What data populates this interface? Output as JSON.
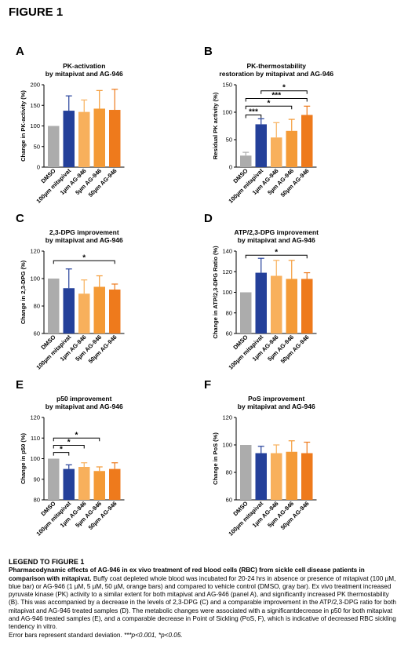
{
  "figure_title": "FIGURE 1",
  "colors": {
    "DMSO": "#acacac",
    "mitapivat": "#24409a",
    "ag1": "#f8b05c",
    "ag5": "#f49a36",
    "ag50": "#ee7a1c"
  },
  "chart_data": [
    {
      "panel": "A",
      "type": "bar",
      "title": [
        "PK-activation",
        "by mitapivat and AG-946"
      ],
      "ylabel": "Change in PK-activity (%)",
      "categories": [
        "DMSO",
        "100µm mitapivat",
        "1µm AG-946",
        "5µm AG-946",
        "50µm AG-946"
      ],
      "values": [
        100,
        137,
        134,
        142,
        139
      ],
      "errors": [
        0,
        36,
        29,
        44,
        50
      ],
      "ylim": [
        0,
        200
      ],
      "yticks": [
        0,
        50,
        100,
        150,
        200
      ],
      "significance": []
    },
    {
      "panel": "B",
      "type": "bar",
      "title": [
        "PK-thermostability",
        "restoration by mitapivat and AG-946"
      ],
      "ylabel": "Residual PK activity (%)",
      "categories": [
        "DMSO",
        "100µm mitapivat",
        "1µm AG-946",
        "5µm AG-946",
        "50µm AG-946"
      ],
      "values": [
        21,
        78,
        54,
        66,
        95
      ],
      "errors": [
        6,
        10,
        27,
        21,
        16
      ],
      "ylim": [
        0,
        150
      ],
      "yticks": [
        0,
        50,
        100,
        150
      ],
      "significance": [
        {
          "from": 0,
          "to": 1,
          "label": "***",
          "y": 95
        },
        {
          "from": 0,
          "to": 3,
          "label": "*",
          "y": 111
        },
        {
          "from": 0,
          "to": 4,
          "label": "***",
          "y": 125
        },
        {
          "from": 1,
          "to": 4,
          "label": "*",
          "y": 139
        }
      ]
    },
    {
      "panel": "C",
      "type": "bar",
      "title": [
        "2,3-DPG improvement",
        "by mitapivat and AG-946"
      ],
      "ylabel": "Change in 2,3-DPG (%)",
      "categories": [
        "DMSO",
        "100µm mitapivat",
        "1µm AG-946",
        "5µm AG-946",
        "50µm AG-946"
      ],
      "values": [
        100,
        93,
        89,
        94,
        92
      ],
      "errors": [
        0,
        14,
        10,
        8,
        4
      ],
      "ylim": [
        60,
        120
      ],
      "yticks": [
        60,
        80,
        100,
        120
      ],
      "significance": [
        {
          "from": 0,
          "to": 4,
          "label": "*",
          "y": 113
        }
      ]
    },
    {
      "panel": "D",
      "type": "bar",
      "title": [
        "ATP/2,3-DPG improvement",
        "by mitapivat and AG-946"
      ],
      "ylabel": "Change in ATP/2,3-DPG Ratio (%)",
      "categories": [
        "DMSO",
        "100µm mitapivat",
        "1µm AG-946",
        "5µm AG-946",
        "50µm AG-946"
      ],
      "values": [
        100,
        119,
        116,
        113,
        113
      ],
      "errors": [
        0,
        14,
        15,
        18,
        6
      ],
      "ylim": [
        60,
        140
      ],
      "yticks": [
        60,
        80,
        100,
        120,
        140
      ],
      "significance": [
        {
          "from": 0,
          "to": 4,
          "label": "*",
          "y": 136
        }
      ]
    },
    {
      "panel": "E",
      "type": "bar",
      "title": [
        "p50 improvement",
        "by mitapivat and AG-946"
      ],
      "ylabel": "Change in p50 (%)",
      "categories": [
        "DMSO",
        "100µm mitapivat",
        "1µm AG-946",
        "5µm AG-946",
        "50µm AG-946"
      ],
      "values": [
        100,
        95,
        96,
        94,
        95
      ],
      "errors": [
        0,
        2,
        2,
        2,
        3
      ],
      "ylim": [
        80,
        120
      ],
      "yticks": [
        80,
        90,
        100,
        110,
        120
      ],
      "significance": [
        {
          "from": 0,
          "to": 1,
          "label": "*",
          "y": 103
        },
        {
          "from": 0,
          "to": 2,
          "label": "*",
          "y": 106.5
        },
        {
          "from": 0,
          "to": 3,
          "label": "*",
          "y": 110
        }
      ]
    },
    {
      "panel": "F",
      "type": "bar",
      "title": [
        "PoS improvement",
        "by mitapivat and AG-946"
      ],
      "ylabel": "Change in PoS (%)",
      "categories": [
        "DMSO",
        "100µm mitapivat",
        "1µm AG-946",
        "5µm AG-946",
        "50µm AG-946"
      ],
      "values": [
        100,
        94,
        94,
        95,
        94
      ],
      "errors": [
        0,
        5,
        6,
        8,
        8
      ],
      "ylim": [
        60,
        120
      ],
      "yticks": [
        60,
        80,
        100,
        120
      ],
      "significance": []
    }
  ],
  "legend": {
    "heading": "LEGEND TO FIGURE 1",
    "bold_line": "Pharmacodynamic effects of AG-946 in ex vivo treatment of red blood cells (RBC) from sickle cell disease patients in comparison with mitapivat.",
    "body": "Buffy coat depleted whole blood was incubated for 20-24 hrs in absence or presence of mitapivat (100 µM, blue bar) or AG-946 (1 µM,  5 µM, 50 µM, orange bars) and compared to vehicle control (DMSO, gray bar). Ex vivo treatment increased pyruvate kinase (PK) activity to a similar extent for both mitapivat and AG-946 (panel A), and significantly increased PK thermostability (B). This was accompanied by a decrease in the levels of 2,3-DPG (C) and a comparable improvement in the ATP/2,3-DPG ratio for both mitapivat and AG-946 treated samples (D). The metabolic changes were associated with a significantdecrease in p50 for both mitapivat and AG-946 treated samples (E), and a comparable decrease in Point of Sickling (PoS, F), which is indicative of decreased RBC sickling tendency in vitro.",
    "note_prefix": "Error bars represent standard deviation. ",
    "note_italic": "***p<0.001, *p<0.05."
  }
}
